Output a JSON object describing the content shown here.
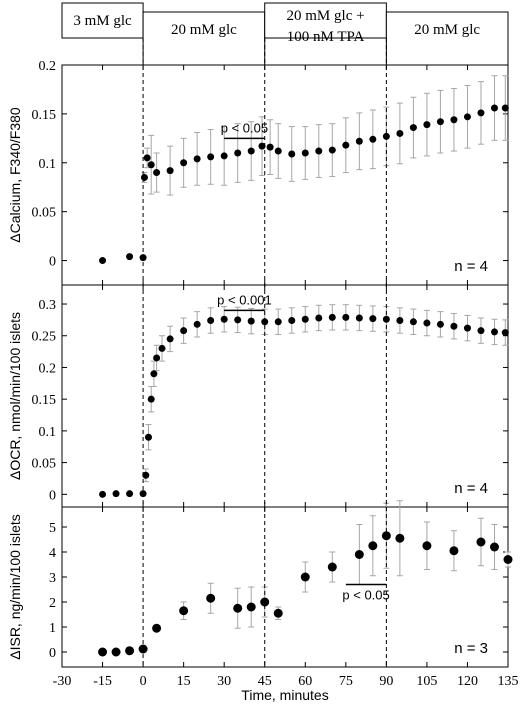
{
  "chart_data": {
    "type": "scatter",
    "x_axis": {
      "label": "Time, minutes",
      "range": [
        -30,
        135
      ],
      "ticks": [
        "-30",
        "-15",
        "0",
        "15",
        "30",
        "45",
        "60",
        "75",
        "90",
        "105",
        "120",
        "135"
      ]
    },
    "condition_bar": [
      {
        "label": "3 mM glc",
        "label2": "",
        "x_start": -30,
        "x_end": 0
      },
      {
        "label": "20 mM glc",
        "label2": "",
        "x_start": 0,
        "x_end": 45
      },
      {
        "label": "20 mM glc +",
        "label2": "100 nM TPA",
        "x_start": 45,
        "x_end": 90
      },
      {
        "label": "20 mM glc",
        "label2": "",
        "x_start": 90,
        "x_end": 135
      }
    ],
    "vertical_markers": [
      0,
      45,
      90
    ],
    "panels": [
      {
        "ylabel": "ΔCalcium, F340/F380",
        "ylim": [
          -0.025,
          0.2
        ],
        "yticks": [
          "0",
          "0.05",
          "0.1",
          "0.15",
          "0.2"
        ],
        "n_label": "n = 4",
        "annotation": {
          "text": "p < 0.05",
          "x_start": 30,
          "x_end": 45,
          "y": 0.125
        },
        "series": [
          {
            "x": -15,
            "y": 0.0,
            "err": 0
          },
          {
            "x": -5,
            "y": 0.004,
            "err": 0
          },
          {
            "x": 0,
            "y": 0.003,
            "err": 0
          },
          {
            "x": 0.5,
            "y": 0.085,
            "err": 0.005
          },
          {
            "x": 1.5,
            "y": 0.105,
            "err": 0.01
          },
          {
            "x": 3,
            "y": 0.098,
            "err": 0.03
          },
          {
            "x": 5,
            "y": 0.09,
            "err": 0.02
          },
          {
            "x": 10,
            "y": 0.092,
            "err": 0.025
          },
          {
            "x": 15,
            "y": 0.1,
            "err": 0.025
          },
          {
            "x": 20,
            "y": 0.104,
            "err": 0.027
          },
          {
            "x": 25,
            "y": 0.106,
            "err": 0.028
          },
          {
            "x": 30,
            "y": 0.107,
            "err": 0.03
          },
          {
            "x": 35,
            "y": 0.11,
            "err": 0.03
          },
          {
            "x": 40,
            "y": 0.112,
            "err": 0.03
          },
          {
            "x": 44,
            "y": 0.117,
            "err": 0.03
          },
          {
            "x": 47,
            "y": 0.116,
            "err": 0.028
          },
          {
            "x": 50,
            "y": 0.112,
            "err": 0.028
          },
          {
            "x": 55,
            "y": 0.109,
            "err": 0.028
          },
          {
            "x": 60,
            "y": 0.11,
            "err": 0.027
          },
          {
            "x": 65,
            "y": 0.112,
            "err": 0.027
          },
          {
            "x": 70,
            "y": 0.113,
            "err": 0.027
          },
          {
            "x": 75,
            "y": 0.118,
            "err": 0.028
          },
          {
            "x": 80,
            "y": 0.122,
            "err": 0.029
          },
          {
            "x": 85,
            "y": 0.124,
            "err": 0.03
          },
          {
            "x": 90,
            "y": 0.127,
            "err": 0.03
          },
          {
            "x": 95,
            "y": 0.13,
            "err": 0.031
          },
          {
            "x": 100,
            "y": 0.136,
            "err": 0.031
          },
          {
            "x": 105,
            "y": 0.139,
            "err": 0.032
          },
          {
            "x": 110,
            "y": 0.142,
            "err": 0.032
          },
          {
            "x": 115,
            "y": 0.144,
            "err": 0.032
          },
          {
            "x": 120,
            "y": 0.147,
            "err": 0.032
          },
          {
            "x": 125,
            "y": 0.151,
            "err": 0.032
          },
          {
            "x": 130,
            "y": 0.156,
            "err": 0.033
          },
          {
            "x": 134,
            "y": 0.156,
            "err": 0.033
          }
        ]
      },
      {
        "ylabel": "ΔOCR, nmol/min/100 islets",
        "ylim": [
          -0.02,
          0.33
        ],
        "yticks": [
          "0",
          "0.05",
          "0.1",
          "0.15",
          "0.2",
          "0.25",
          "0.3"
        ],
        "n_label": "n = 4",
        "annotation": {
          "text": "p < 0.001",
          "x_start": 30,
          "x_end": 45,
          "y": 0.29
        },
        "series": [
          {
            "x": -15,
            "y": 0.0,
            "err": 0
          },
          {
            "x": -10,
            "y": 0.001,
            "err": 0
          },
          {
            "x": -5,
            "y": 0.001,
            "err": 0
          },
          {
            "x": 0,
            "y": 0.001,
            "err": 0
          },
          {
            "x": 1,
            "y": 0.03,
            "err": 0.01
          },
          {
            "x": 2,
            "y": 0.09,
            "err": 0.02
          },
          {
            "x": 3,
            "y": 0.15,
            "err": 0.02
          },
          {
            "x": 4,
            "y": 0.19,
            "err": 0.02
          },
          {
            "x": 5,
            "y": 0.215,
            "err": 0.02
          },
          {
            "x": 7,
            "y": 0.23,
            "err": 0.02
          },
          {
            "x": 10,
            "y": 0.245,
            "err": 0.02
          },
          {
            "x": 15,
            "y": 0.258,
            "err": 0.02
          },
          {
            "x": 20,
            "y": 0.268,
            "err": 0.02
          },
          {
            "x": 25,
            "y": 0.274,
            "err": 0.02
          },
          {
            "x": 30,
            "y": 0.276,
            "err": 0.02
          },
          {
            "x": 35,
            "y": 0.275,
            "err": 0.02
          },
          {
            "x": 40,
            "y": 0.273,
            "err": 0.02
          },
          {
            "x": 45,
            "y": 0.272,
            "err": 0.02
          },
          {
            "x": 50,
            "y": 0.272,
            "err": 0.02
          },
          {
            "x": 55,
            "y": 0.274,
            "err": 0.02
          },
          {
            "x": 60,
            "y": 0.276,
            "err": 0.02
          },
          {
            "x": 65,
            "y": 0.278,
            "err": 0.02
          },
          {
            "x": 70,
            "y": 0.279,
            "err": 0.02
          },
          {
            "x": 75,
            "y": 0.279,
            "err": 0.02
          },
          {
            "x": 80,
            "y": 0.278,
            "err": 0.02
          },
          {
            "x": 85,
            "y": 0.277,
            "err": 0.02
          },
          {
            "x": 90,
            "y": 0.276,
            "err": 0.02
          },
          {
            "x": 95,
            "y": 0.274,
            "err": 0.02
          },
          {
            "x": 100,
            "y": 0.272,
            "err": 0.02
          },
          {
            "x": 105,
            "y": 0.27,
            "err": 0.02
          },
          {
            "x": 110,
            "y": 0.268,
            "err": 0.02
          },
          {
            "x": 115,
            "y": 0.265,
            "err": 0.02
          },
          {
            "x": 120,
            "y": 0.262,
            "err": 0.02
          },
          {
            "x": 125,
            "y": 0.258,
            "err": 0.02
          },
          {
            "x": 130,
            "y": 0.256,
            "err": 0.02
          },
          {
            "x": 134,
            "y": 0.255,
            "err": 0.02
          }
        ]
      },
      {
        "ylabel": "ΔISR, ng/min/100 islets",
        "ylim": [
          -0.6,
          5.8
        ],
        "yticks": [
          "0",
          "1",
          "2",
          "3",
          "4",
          "5"
        ],
        "n_label": "n = 3",
        "annotation": {
          "text": "p < 0.05",
          "x_start": 75,
          "x_end": 90,
          "y": 2.7
        },
        "series": [
          {
            "x": -15,
            "y": 0.0,
            "err": 0
          },
          {
            "x": -10,
            "y": 0.0,
            "err": 0
          },
          {
            "x": -5,
            "y": 0.05,
            "err": 0
          },
          {
            "x": 0,
            "y": 0.12,
            "err": 0
          },
          {
            "x": 5,
            "y": 0.95,
            "err": 0
          },
          {
            "x": 15,
            "y": 1.65,
            "err": 0.35
          },
          {
            "x": 25,
            "y": 2.15,
            "err": 0.6
          },
          {
            "x": 35,
            "y": 1.75,
            "err": 0.8
          },
          {
            "x": 40,
            "y": 1.8,
            "err": 0.8
          },
          {
            "x": 45,
            "y": 2.0,
            "err": 0.6
          },
          {
            "x": 50,
            "y": 1.55,
            "err": 0.25
          },
          {
            "x": 60,
            "y": 3.0,
            "err": 0.6
          },
          {
            "x": 70,
            "y": 3.4,
            "err": 0.6
          },
          {
            "x": 80,
            "y": 3.9,
            "err": 1.2
          },
          {
            "x": 85,
            "y": 4.25,
            "err": 1.2
          },
          {
            "x": 90,
            "y": 4.65,
            "err": 1.3
          },
          {
            "x": 95,
            "y": 4.55,
            "err": 1.5
          },
          {
            "x": 105,
            "y": 4.25,
            "err": 0.95
          },
          {
            "x": 115,
            "y": 4.05,
            "err": 0.8
          },
          {
            "x": 125,
            "y": 4.4,
            "err": 0.95
          },
          {
            "x": 130,
            "y": 4.2,
            "err": 0.9
          },
          {
            "x": 135,
            "y": 3.7,
            "err": 0.3
          }
        ]
      }
    ],
    "colors": {
      "point": "#000000",
      "errorbar": "#a6a6a6",
      "frame": "#000000"
    }
  }
}
